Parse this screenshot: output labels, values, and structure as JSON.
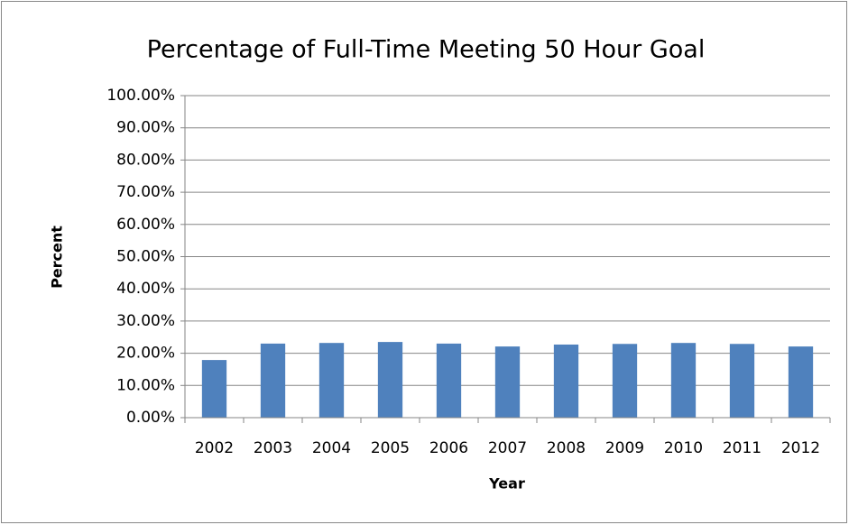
{
  "chart_data": {
    "type": "bar",
    "title": "Percentage of Full-Time Meeting 50 Hour Goal",
    "x_label": "Year",
    "y_label": "Percent",
    "categories": [
      "2002",
      "2003",
      "2004",
      "2005",
      "2006",
      "2007",
      "2008",
      "2009",
      "2010",
      "2011",
      "2012"
    ],
    "values": [
      17.9,
      23.0,
      23.2,
      23.5,
      23.0,
      22.1,
      22.7,
      22.9,
      23.2,
      22.9,
      22.1
    ],
    "color": "#4f81bd",
    "ylim": [
      0,
      100
    ],
    "yticks": [
      {
        "value": 0,
        "label": "0.00%"
      },
      {
        "value": 10,
        "label": "10.00%"
      },
      {
        "value": 20,
        "label": "20.00%"
      },
      {
        "value": 30,
        "label": "30.00%"
      },
      {
        "value": 40,
        "label": "40.00%"
      },
      {
        "value": 50,
        "label": "50.00%"
      },
      {
        "value": 60,
        "label": "60.00%"
      },
      {
        "value": 70,
        "label": "70.00%"
      },
      {
        "value": 80,
        "label": "80.00%"
      },
      {
        "value": 90,
        "label": "90.00%"
      },
      {
        "value": 100,
        "label": "100.00%"
      }
    ],
    "grid": true
  }
}
